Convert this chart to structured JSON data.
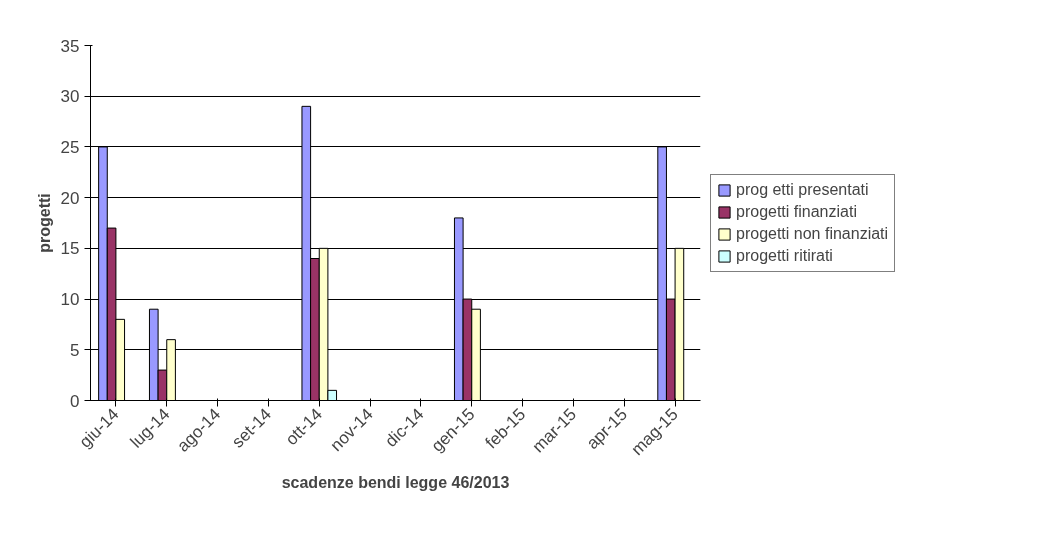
{
  "chart_data": {
    "type": "bar",
    "xlabel": "scadenze bendi legge 46/2013",
    "ylabel": "progetti",
    "categories": [
      "giu-14",
      "lug-14",
      "ago-14",
      "set-14",
      "ott-14",
      "nov-14",
      "dic-14",
      "gen-15",
      "feb-15",
      "mar-15",
      "apr-15",
      "mag-15"
    ],
    "series": [
      {
        "name": "prog etti presentati",
        "color": "#9999ff",
        "values": [
          25,
          9,
          null,
          null,
          29,
          null,
          null,
          18,
          null,
          null,
          null,
          25
        ]
      },
      {
        "name": "progetti finanziati",
        "color": "#993366",
        "values": [
          17,
          3,
          null,
          null,
          14,
          null,
          null,
          10,
          null,
          null,
          null,
          10
        ]
      },
      {
        "name": "progetti non finanziati",
        "color": "#ffffcc",
        "values": [
          8,
          6,
          null,
          null,
          15,
          null,
          null,
          9,
          null,
          null,
          null,
          15
        ]
      },
      {
        "name": "progetti ritirati",
        "color": "#ccffff",
        "values": [
          null,
          null,
          null,
          null,
          1,
          null,
          null,
          null,
          null,
          null,
          null,
          null
        ]
      }
    ],
    "ylim": [
      0,
      35
    ],
    "yticks": [
      0,
      5,
      10,
      15,
      20,
      25,
      30,
      35
    ],
    "grid": "y",
    "legend": "right"
  }
}
